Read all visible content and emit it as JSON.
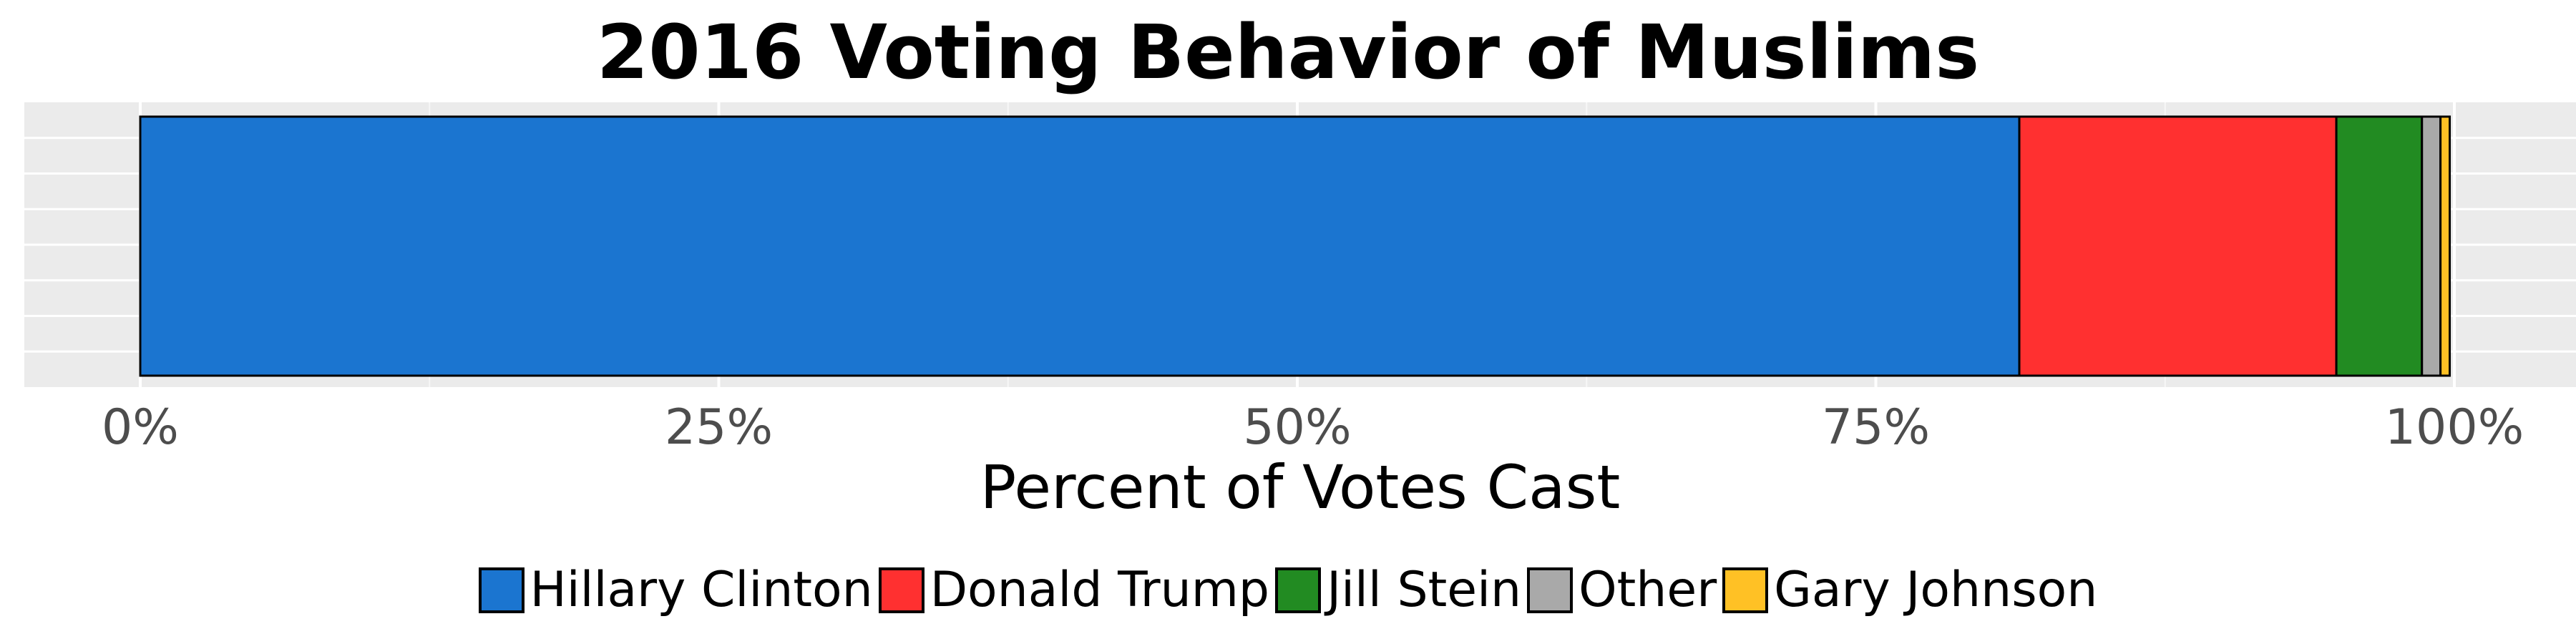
{
  "chart_data": {
    "type": "bar",
    "orientation": "horizontal-stacked",
    "title": "2016 Voting Behavior of Muslims",
    "xlabel": "Percent of Votes Cast",
    "ylabel": "",
    "xlim": [
      0,
      100
    ],
    "x_ticks": [
      "0%",
      "25%",
      "50%",
      "75%",
      "100%"
    ],
    "grid": true,
    "legend_position": "bottom",
    "series": [
      {
        "name": "Hillary Clinton",
        "value": 81.2,
        "color": "#1b75d0"
      },
      {
        "name": "Donald Trump",
        "value": 13.7,
        "color": "#ff3030"
      },
      {
        "name": "Jill Stein",
        "value": 3.7,
        "color": "#228b22"
      },
      {
        "name": "Other",
        "value": 0.8,
        "color": "#a9a9a9"
      },
      {
        "name": "Gary Johnson",
        "value": 0.4,
        "color": "#ffc125"
      }
    ]
  }
}
